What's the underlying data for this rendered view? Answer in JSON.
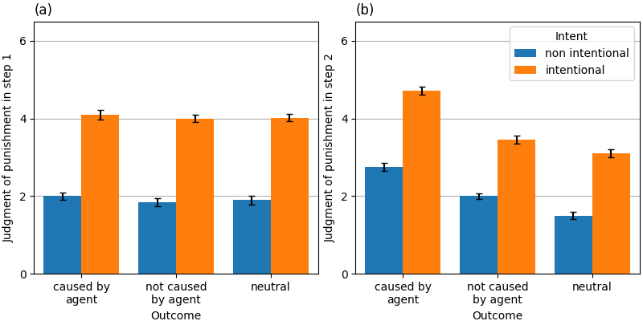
{
  "chart_data": [
    {
      "type": "bar",
      "title": "(a)",
      "x_label": "Outcome",
      "y_label": "Judgment of punishment in step 1",
      "categories": [
        "caused by agent",
        "not caused by agent",
        "neutral"
      ],
      "series": [
        {
          "name": "non intentional",
          "values": [
            2.0,
            1.85,
            1.9
          ],
          "errors": [
            0.09,
            0.1,
            0.12
          ]
        },
        {
          "name": "intentional",
          "values": [
            4.1,
            4.0,
            4.02
          ],
          "errors": [
            0.12,
            0.09,
            0.09
          ]
        }
      ],
      "ylim": [
        0,
        6.5
      ],
      "yticks": [
        0,
        2,
        4,
        6
      ],
      "grid": true
    },
    {
      "type": "bar",
      "title": "(b)",
      "x_label": "Outcome",
      "y_label": "Judgment of punishment in step 2",
      "categories": [
        "caused by agent",
        "not caused by agent",
        "neutral"
      ],
      "series": [
        {
          "name": "non intentional",
          "values": [
            2.75,
            2.0,
            1.5
          ],
          "errors": [
            0.1,
            0.08,
            0.09
          ]
        },
        {
          "name": "intentional",
          "values": [
            4.72,
            3.45,
            3.1
          ],
          "errors": [
            0.1,
            0.1,
            0.1
          ]
        }
      ],
      "ylim": [
        0,
        6.5
      ],
      "yticks": [
        0,
        2,
        4,
        6
      ],
      "grid": true,
      "legend": "upper right",
      "legend_title": "Intent"
    }
  ]
}
